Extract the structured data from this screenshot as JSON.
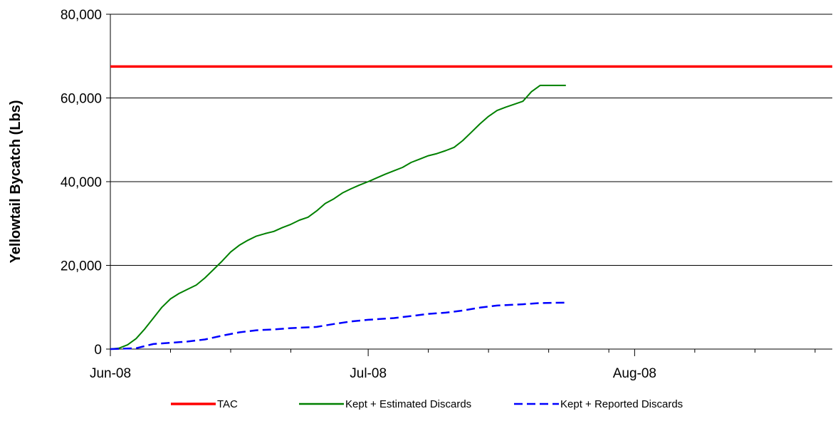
{
  "chart_data": {
    "type": "line",
    "title": "",
    "xlabel": "",
    "ylabel": "Yellowtail Bycatch (Lbs)",
    "x_axis": {
      "kind": "date",
      "range": [
        "2008-06-01",
        "2008-08-24"
      ],
      "tick_labels": [
        {
          "date": "2008-06-01",
          "label": "Jun-08"
        },
        {
          "date": "2008-07-01",
          "label": "Jul-08"
        },
        {
          "date": "2008-08-01",
          "label": "Aug-08"
        }
      ],
      "minor_tick_dates": [
        "2008-06-08",
        "2008-06-15",
        "2008-06-22",
        "2008-07-08",
        "2008-07-15",
        "2008-07-22",
        "2008-07-29",
        "2008-08-08",
        "2008-08-15",
        "2008-08-22"
      ]
    },
    "y_axis": {
      "range": [
        0,
        80000
      ],
      "ticks": [
        0,
        20000,
        40000,
        60000,
        80000
      ],
      "tick_labels": [
        "0",
        "20,000",
        "40,000",
        "60,000",
        "80,000"
      ]
    },
    "grid": "horizontal",
    "legend_position": "bottom",
    "series": [
      {
        "name": "TAC",
        "color": "#ff0000",
        "style": "solid",
        "points": [
          [
            "2008-06-01",
            67500
          ],
          [
            "2008-08-24",
            67500
          ]
        ]
      },
      {
        "name": "Kept + Estimated Discards",
        "color": "#008000",
        "style": "solid",
        "points": [
          [
            "2008-06-01",
            0
          ],
          [
            "2008-06-02",
            200
          ],
          [
            "2008-06-03",
            1000
          ],
          [
            "2008-06-04",
            2500
          ],
          [
            "2008-06-05",
            4800
          ],
          [
            "2008-06-06",
            7400
          ],
          [
            "2008-06-07",
            10000
          ],
          [
            "2008-06-08",
            12000
          ],
          [
            "2008-06-09",
            13300
          ],
          [
            "2008-06-10",
            14300
          ],
          [
            "2008-06-11",
            15300
          ],
          [
            "2008-06-12",
            17000
          ],
          [
            "2008-06-13",
            19000
          ],
          [
            "2008-06-14",
            21000
          ],
          [
            "2008-06-15",
            23200
          ],
          [
            "2008-06-16",
            24800
          ],
          [
            "2008-06-17",
            26000
          ],
          [
            "2008-06-18",
            27000
          ],
          [
            "2008-06-19",
            27600
          ],
          [
            "2008-06-20",
            28100
          ],
          [
            "2008-06-21",
            29000
          ],
          [
            "2008-06-22",
            29800
          ],
          [
            "2008-06-23",
            30800
          ],
          [
            "2008-06-24",
            31500
          ],
          [
            "2008-06-25",
            33000
          ],
          [
            "2008-06-26",
            34800
          ],
          [
            "2008-06-27",
            35900
          ],
          [
            "2008-06-28",
            37300
          ],
          [
            "2008-06-29",
            38300
          ],
          [
            "2008-06-30",
            39200
          ],
          [
            "2008-07-01",
            40000
          ],
          [
            "2008-07-02",
            40900
          ],
          [
            "2008-07-03",
            41800
          ],
          [
            "2008-07-04",
            42600
          ],
          [
            "2008-07-05",
            43400
          ],
          [
            "2008-07-06",
            44600
          ],
          [
            "2008-07-07",
            45400
          ],
          [
            "2008-07-08",
            46200
          ],
          [
            "2008-07-09",
            46700
          ],
          [
            "2008-07-10",
            47400
          ],
          [
            "2008-07-11",
            48200
          ],
          [
            "2008-07-12",
            49800
          ],
          [
            "2008-07-13",
            51800
          ],
          [
            "2008-07-14",
            53800
          ],
          [
            "2008-07-15",
            55600
          ],
          [
            "2008-07-16",
            57000
          ],
          [
            "2008-07-17",
            57800
          ],
          [
            "2008-07-18",
            58500
          ],
          [
            "2008-07-19",
            59200
          ],
          [
            "2008-07-20",
            61500
          ],
          [
            "2008-07-21",
            63000
          ],
          [
            "2008-07-22",
            63000
          ],
          [
            "2008-07-23",
            63000
          ],
          [
            "2008-07-24",
            63000
          ]
        ]
      },
      {
        "name": "Kept + Reported Discards",
        "color": "#0000ff",
        "style": "dashed",
        "points": [
          [
            "2008-06-01",
            0
          ],
          [
            "2008-06-04",
            200
          ],
          [
            "2008-06-06",
            1200
          ],
          [
            "2008-06-08",
            1500
          ],
          [
            "2008-06-10",
            1800
          ],
          [
            "2008-06-12",
            2300
          ],
          [
            "2008-06-14",
            3200
          ],
          [
            "2008-06-16",
            4000
          ],
          [
            "2008-06-18",
            4500
          ],
          [
            "2008-06-20",
            4700
          ],
          [
            "2008-06-22",
            5000
          ],
          [
            "2008-06-25",
            5300
          ],
          [
            "2008-06-27",
            6000
          ],
          [
            "2008-06-29",
            6600
          ],
          [
            "2008-07-01",
            7000
          ],
          [
            "2008-07-04",
            7400
          ],
          [
            "2008-07-06",
            7900
          ],
          [
            "2008-07-08",
            8400
          ],
          [
            "2008-07-10",
            8700
          ],
          [
            "2008-07-12",
            9200
          ],
          [
            "2008-07-14",
            9900
          ],
          [
            "2008-07-16",
            10400
          ],
          [
            "2008-07-19",
            10700
          ],
          [
            "2008-07-21",
            11000
          ],
          [
            "2008-07-24",
            11100
          ]
        ]
      }
    ],
    "legend": [
      "TAC",
      "Kept + Estimated Discards",
      "Kept + Reported Discards"
    ]
  }
}
